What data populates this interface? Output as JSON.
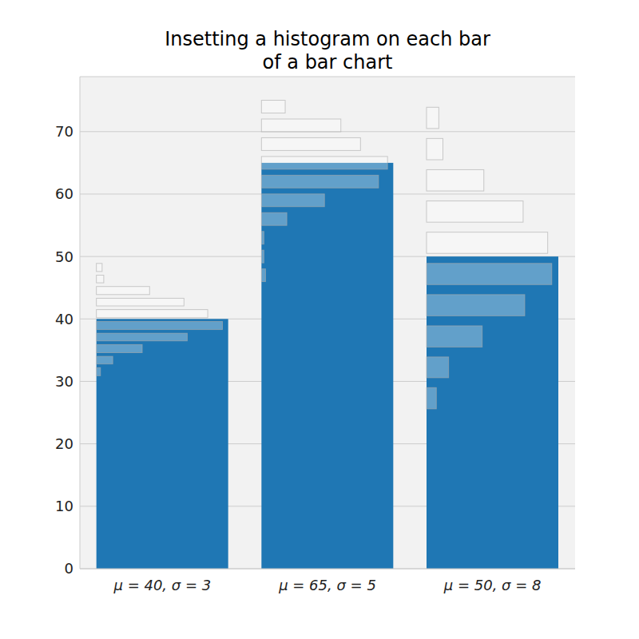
{
  "chart_data": {
    "type": "bar",
    "title": "Insetting a histogram on each bar\nof a bar chart",
    "categories": [
      "μ = 40, σ = 3",
      "μ = 65, σ = 5",
      "μ = 50, σ = 8"
    ],
    "values": [
      40,
      65,
      50
    ],
    "color": "#1f77b4",
    "ylim": [
      0,
      78.8
    ],
    "yticks": [
      0,
      10,
      20,
      30,
      40,
      50,
      60,
      70
    ],
    "grid": true,
    "histograms": [
      {
        "bins": [
          30.6,
          32.5,
          34.3,
          36.2,
          38.0,
          39.9,
          41.8,
          43.6,
          45.5,
          47.3,
          49.2
        ],
        "counts": [
          5,
          20,
          56,
          111,
          154,
          136,
          107,
          65,
          9,
          7
        ],
        "xlim": [
          0,
          161
        ]
      },
      {
        "bins": [
          45.5,
          48.5,
          51.5,
          54.5,
          57.5,
          60.5,
          63.5,
          66.5,
          69.5,
          72.5,
          75.5
        ],
        "counts": [
          5,
          3,
          3,
          31,
          77,
          143,
          154,
          121,
          97,
          29
        ],
        "xlim": [
          0,
          161
        ]
      },
      {
        "bins": [
          24.8,
          29.8,
          34.7,
          39.7,
          44.7,
          49.7,
          54.7,
          59.7,
          64.7,
          69.7,
          74.7
        ],
        "counts": [
          12,
          27,
          68,
          120,
          153,
          148,
          118,
          70,
          20,
          15
        ],
        "xlim": [
          0,
          161
        ]
      }
    ]
  }
}
